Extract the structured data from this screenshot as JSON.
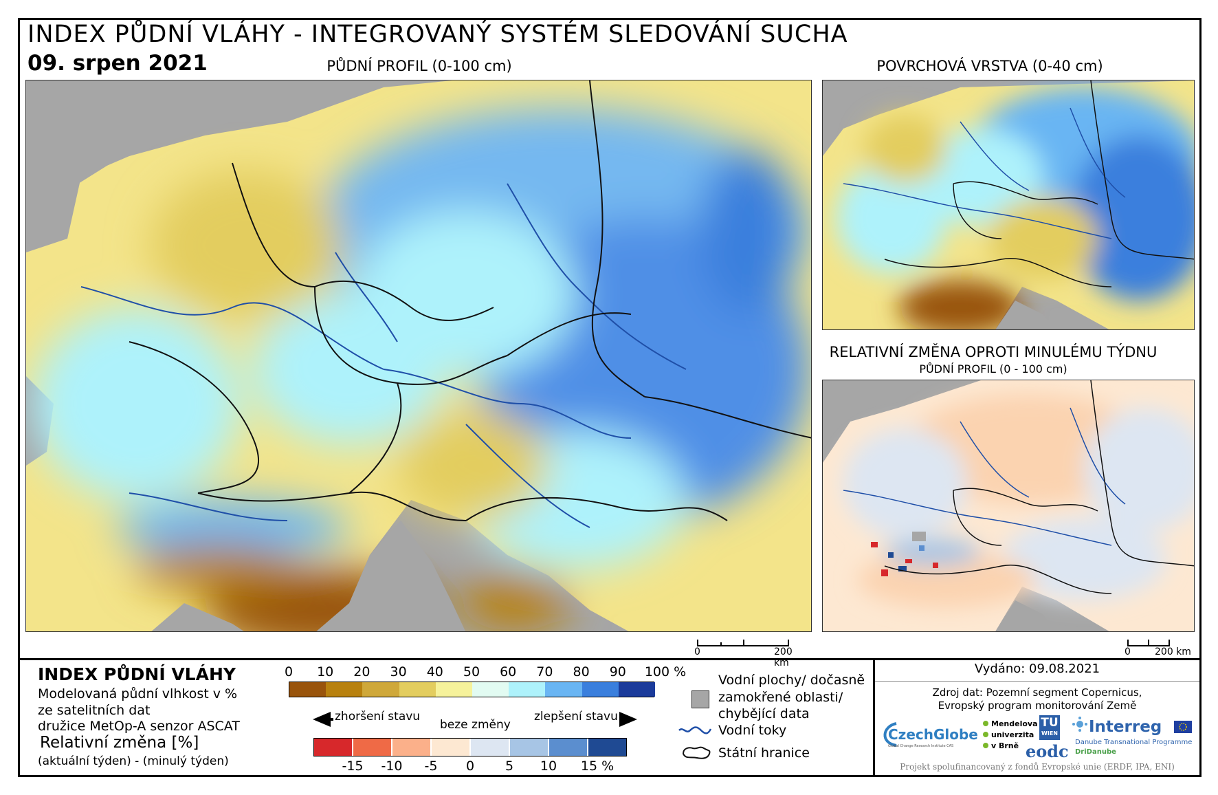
{
  "header": {
    "title": "INDEX PŮDNÍ VLÁHY - INTEGROVANÝ SYSTÉM SLEDOVÁNÍ SUCHA",
    "date": "09. srpen 2021"
  },
  "maps": {
    "main_caption": "PŮDNÍ PROFIL (0-100 cm)",
    "surface_caption": "POVRCHOVÁ VRSTVA (0-40 cm)",
    "change_caption": "RELATIVNÍ ZMĚNA OPROTI MINULÉMU TÝDNU",
    "change_subcaption": "PŮDNÍ PROFIL (0 - 100 cm)",
    "scale_zero": "0",
    "scale_max": "200 km",
    "colors": {
      "nodata": "#a6a6a6",
      "river": "#1f4fa8",
      "border": "#111111"
    }
  },
  "legend": {
    "title": "INDEX PŮDNÍ VLÁHY",
    "desc_1": "Modelovaná půdní vlhkost v %",
    "desc_2": "ze satelitních dat",
    "desc_3": "družice MetOp-A senzor ASCAT",
    "change_title": "Relativní změna [%]",
    "change_desc": "(aktuální týden) - (minulý týden)",
    "index_ticks": [
      "0",
      "10",
      "20",
      "30",
      "40",
      "50",
      "60",
      "70",
      "80",
      "90",
      "100 %"
    ],
    "index_colors": [
      "#99540c",
      "#b8810f",
      "#cfa83a",
      "#e3cd5f",
      "#f6f29b",
      "#e2fbf2",
      "#aef2fb",
      "#69b5f3",
      "#3a7fdd",
      "#1b3b9b"
    ],
    "worse_label": "zhoršení stavu",
    "nochange_label": "beze změny",
    "better_label": "zlepšení stavu",
    "change_ticks": [
      "-15",
      "-10",
      "-5",
      "0",
      "5",
      "10",
      "15 %"
    ],
    "change_colors": [
      "#d7282b",
      "#ef6a46",
      "#fbb08a",
      "#fde8d2",
      "#dde6f2",
      "#a7c5e5",
      "#5b8ecf",
      "#1f4a93"
    ],
    "nodata_label_1": "Vodní plochy/ dočasně",
    "nodata_label_2": "zamokřené oblasti/",
    "nodata_label_3": "chybějící data",
    "river_label": "Vodní toky",
    "border_label": "Státní hranice"
  },
  "info": {
    "issued": "Vydáno: 09.08.2021",
    "source_1": "Zdroj dat: Pozemní segment Copernicus,",
    "source_2": "Evropský program monitorování Země",
    "logo_czechglobe": "CzechGlobe",
    "logo_czechglobe_sub": "Global Change Research Institute CAS",
    "logo_mendel_1": "Mendelova",
    "logo_mendel_2": "univerzita",
    "logo_mendel_3": "v Brně",
    "logo_tu_1": "TU",
    "logo_tu_2": "WIEN",
    "logo_eodc": "eodc",
    "logo_interreg": "Interreg",
    "logo_interreg_sub": "Danube Transnational Programme",
    "logo_dridanube": "DriDanube",
    "footer": "Projekt spolufinancovaný z fondů Evropské unie (ERDF, IPA, ENI)"
  }
}
